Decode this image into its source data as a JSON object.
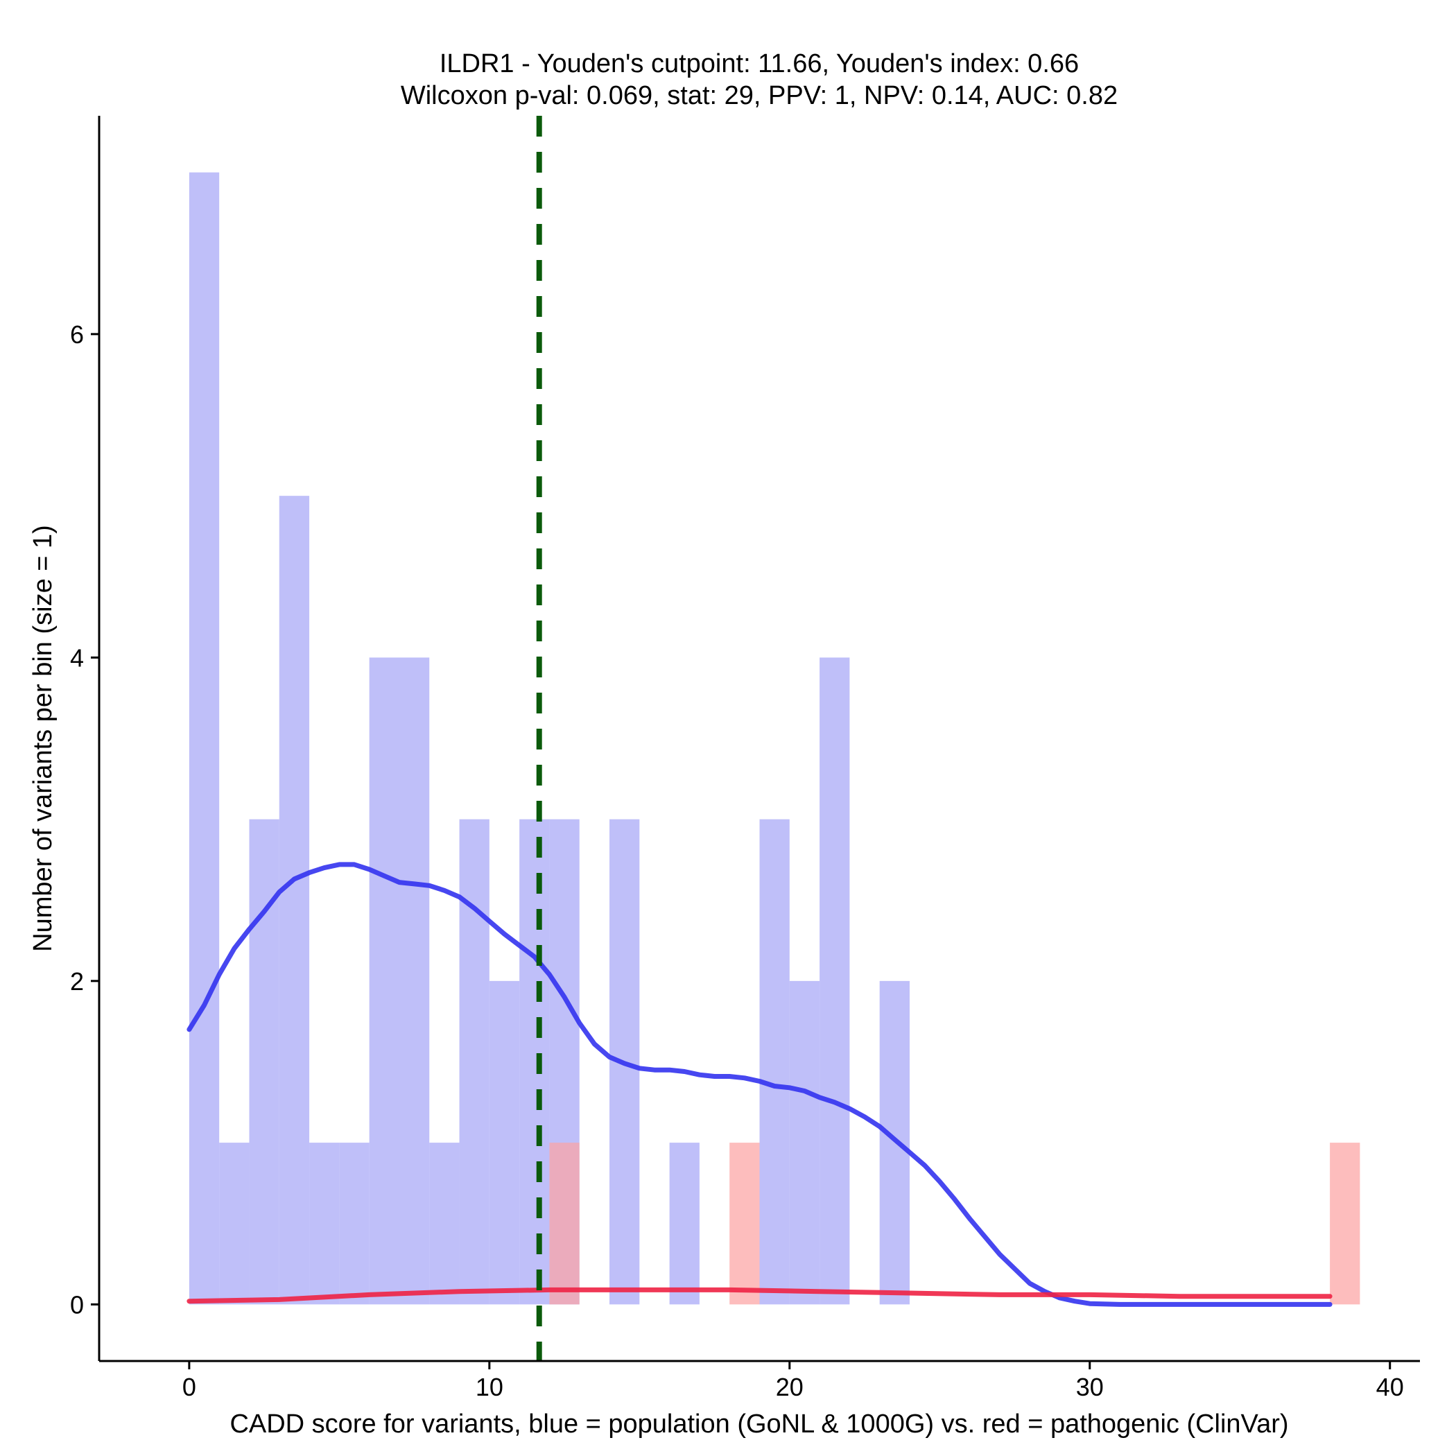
{
  "chart_data": {
    "type": "bar",
    "title": "ILDR1 - Youden's cutpoint: 11.66, Youden's index: 0.66",
    "subtitle": "Wilcoxon p-val: 0.069, stat: 29, PPV: 1, NPV: 0.14, AUC: 0.82",
    "xlabel": "CADD score for variants, blue = population (GoNL & 1000G) vs. red = pathogenic (ClinVar)",
    "ylabel": "Number of variants per bin (size = 1)",
    "xlim": [
      -3,
      41
    ],
    "ylim": [
      -0.35,
      7.35
    ],
    "x_ticks": [
      0,
      10,
      20,
      30,
      40
    ],
    "y_ticks": [
      0,
      2,
      4,
      6
    ],
    "bin_size": 1,
    "cutpoint": 11.66,
    "series": [
      {
        "name": "population (GoNL & 1000G)",
        "color": "#a6a6f7",
        "bins": [
          {
            "x0": 0,
            "x1": 1,
            "count": 7
          },
          {
            "x0": 1,
            "x1": 2,
            "count": 1
          },
          {
            "x0": 2,
            "x1": 3,
            "count": 3
          },
          {
            "x0": 3,
            "x1": 4,
            "count": 5
          },
          {
            "x0": 4,
            "x1": 5,
            "count": 1
          },
          {
            "x0": 5,
            "x1": 6,
            "count": 1
          },
          {
            "x0": 6,
            "x1": 7,
            "count": 4
          },
          {
            "x0": 7,
            "x1": 8,
            "count": 4
          },
          {
            "x0": 8,
            "x1": 9,
            "count": 1
          },
          {
            "x0": 9,
            "x1": 10,
            "count": 3
          },
          {
            "x0": 10,
            "x1": 11,
            "count": 2
          },
          {
            "x0": 11,
            "x1": 12,
            "count": 3
          },
          {
            "x0": 12,
            "x1": 13,
            "count": 3
          },
          {
            "x0": 14,
            "x1": 15,
            "count": 3
          },
          {
            "x0": 16,
            "x1": 17,
            "count": 1
          },
          {
            "x0": 19,
            "x1": 20,
            "count": 3
          },
          {
            "x0": 20,
            "x1": 21,
            "count": 2
          },
          {
            "x0": 21,
            "x1": 22,
            "count": 4
          },
          {
            "x0": 23,
            "x1": 24,
            "count": 2
          }
        ]
      },
      {
        "name": "pathogenic (ClinVar)",
        "color": "#fca3a3",
        "bins": [
          {
            "x0": 12,
            "x1": 13,
            "count": 1
          },
          {
            "x0": 18,
            "x1": 19,
            "count": 1
          },
          {
            "x0": 38,
            "x1": 39,
            "count": 1
          }
        ]
      }
    ],
    "density_curves": [
      {
        "name": "population density",
        "color": "#3333ee",
        "points": [
          [
            0,
            1.7
          ],
          [
            0.5,
            1.85
          ],
          [
            1,
            2.04
          ],
          [
            1.5,
            2.2
          ],
          [
            2,
            2.32
          ],
          [
            2.5,
            2.43
          ],
          [
            3,
            2.55
          ],
          [
            3.5,
            2.63
          ],
          [
            4,
            2.67
          ],
          [
            4.5,
            2.7
          ],
          [
            5,
            2.72
          ],
          [
            5.5,
            2.72
          ],
          [
            6,
            2.69
          ],
          [
            6.5,
            2.65
          ],
          [
            7,
            2.61
          ],
          [
            7.5,
            2.6
          ],
          [
            8,
            2.59
          ],
          [
            8.5,
            2.56
          ],
          [
            9,
            2.52
          ],
          [
            9.5,
            2.45
          ],
          [
            10,
            2.37
          ],
          [
            10.5,
            2.29
          ],
          [
            11,
            2.22
          ],
          [
            11.5,
            2.15
          ],
          [
            12,
            2.04
          ],
          [
            12.5,
            1.9
          ],
          [
            13,
            1.74
          ],
          [
            13.5,
            1.61
          ],
          [
            14,
            1.53
          ],
          [
            14.5,
            1.49
          ],
          [
            15,
            1.46
          ],
          [
            15.5,
            1.45
          ],
          [
            16,
            1.45
          ],
          [
            16.5,
            1.44
          ],
          [
            17,
            1.42
          ],
          [
            17.5,
            1.41
          ],
          [
            18,
            1.41
          ],
          [
            18.5,
            1.4
          ],
          [
            19,
            1.38
          ],
          [
            19.5,
            1.35
          ],
          [
            20,
            1.34
          ],
          [
            20.5,
            1.32
          ],
          [
            21,
            1.28
          ],
          [
            21.5,
            1.25
          ],
          [
            22,
            1.21
          ],
          [
            22.5,
            1.16
          ],
          [
            23,
            1.1
          ],
          [
            23.5,
            1.02
          ],
          [
            24,
            0.94
          ],
          [
            24.5,
            0.86
          ],
          [
            25,
            0.76
          ],
          [
            25.5,
            0.65
          ],
          [
            26,
            0.53
          ],
          [
            26.5,
            0.42
          ],
          [
            27,
            0.31
          ],
          [
            27.5,
            0.22
          ],
          [
            28,
            0.13
          ],
          [
            28.5,
            0.08
          ],
          [
            29,
            0.04
          ],
          [
            29.5,
            0.02
          ],
          [
            30,
            0.005
          ],
          [
            31,
            0
          ],
          [
            32,
            0
          ],
          [
            34,
            0
          ],
          [
            36,
            0
          ],
          [
            38,
            0
          ]
        ]
      },
      {
        "name": "pathogenic density",
        "color": "#ee2244",
        "points": [
          [
            0,
            0.02
          ],
          [
            3,
            0.03
          ],
          [
            6,
            0.06
          ],
          [
            9,
            0.08
          ],
          [
            12,
            0.09
          ],
          [
            15,
            0.09
          ],
          [
            18,
            0.09
          ],
          [
            21,
            0.08
          ],
          [
            24,
            0.07
          ],
          [
            27,
            0.06
          ],
          [
            30,
            0.06
          ],
          [
            33,
            0.05
          ],
          [
            36,
            0.05
          ],
          [
            38,
            0.05
          ]
        ]
      }
    ]
  }
}
